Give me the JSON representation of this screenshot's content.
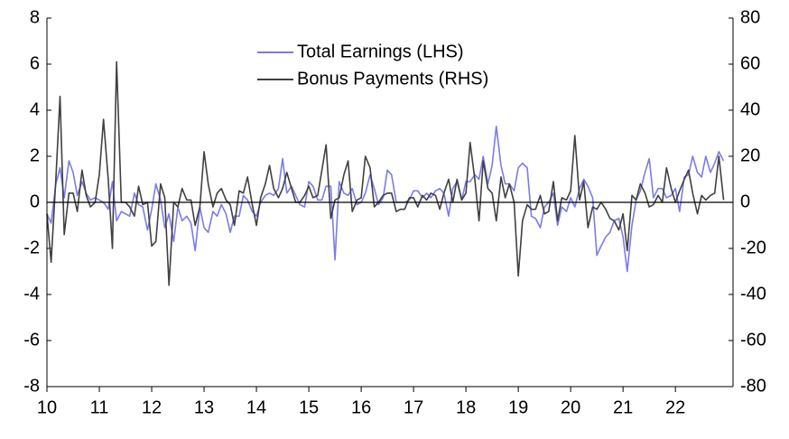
{
  "chart_data": {
    "type": "line",
    "x": [
      10,
      10.08,
      10.17,
      10.25,
      10.33,
      10.42,
      10.5,
      10.58,
      10.67,
      10.75,
      10.83,
      10.92,
      11,
      11.08,
      11.17,
      11.25,
      11.33,
      11.42,
      11.5,
      11.58,
      11.67,
      11.75,
      11.83,
      11.92,
      12,
      12.08,
      12.17,
      12.25,
      12.33,
      12.42,
      12.5,
      12.58,
      12.67,
      12.75,
      12.83,
      12.92,
      13,
      13.08,
      13.17,
      13.25,
      13.33,
      13.42,
      13.5,
      13.58,
      13.67,
      13.75,
      13.83,
      13.92,
      14,
      14.08,
      14.17,
      14.25,
      14.33,
      14.42,
      14.5,
      14.58,
      14.67,
      14.75,
      14.83,
      14.92,
      15,
      15.08,
      15.17,
      15.25,
      15.33,
      15.42,
      15.5,
      15.58,
      15.67,
      15.75,
      15.83,
      15.92,
      16,
      16.08,
      16.17,
      16.25,
      16.33,
      16.42,
      16.5,
      16.58,
      16.67,
      16.75,
      16.83,
      16.92,
      17,
      17.08,
      17.17,
      17.25,
      17.33,
      17.42,
      17.5,
      17.58,
      17.67,
      17.75,
      17.83,
      17.92,
      18,
      18.08,
      18.17,
      18.25,
      18.33,
      18.42,
      18.5,
      18.58,
      18.67,
      18.75,
      18.83,
      18.92,
      19,
      19.08,
      19.17,
      19.25,
      19.33,
      19.42,
      19.5,
      19.58,
      19.67,
      19.75,
      19.83,
      19.92,
      20,
      20.08,
      20.17,
      20.25,
      20.33,
      20.42,
      20.5,
      20.58,
      20.67,
      20.75,
      20.83,
      20.92,
      21,
      21.08,
      21.17,
      21.25,
      21.33,
      21.42,
      21.5,
      21.58,
      21.67,
      21.75,
      21.83,
      21.92,
      22,
      22.08,
      22.17,
      22.25,
      22.33,
      22.42,
      22.5,
      22.58,
      22.67,
      22.75,
      22.83,
      22.92
    ],
    "series": [
      {
        "name": "Total Earnings (LHS)",
        "color": "#7b7bea",
        "axis": "y",
        "values": [
          -0.5,
          -0.9,
          0.8,
          1.5,
          0.2,
          1.8,
          1.3,
          0.3,
          0.9,
          0.4,
          0.1,
          0.2,
          0.1,
          0.0,
          -0.3,
          0.9,
          -0.8,
          -0.4,
          -0.5,
          -0.6,
          0.4,
          -0.1,
          -0.2,
          -1.2,
          -0.3,
          0.8,
          0.1,
          -1.1,
          -0.5,
          -1.7,
          -0.2,
          -0.8,
          -0.6,
          -0.9,
          -2.1,
          -0.2,
          -1.1,
          -1.3,
          -0.4,
          -0.6,
          -0.1,
          -0.5,
          -1.3,
          -0.6,
          -0.6,
          0.3,
          0.1,
          -0.4,
          -0.6,
          0.0,
          0.3,
          0.4,
          0.3,
          0.6,
          1.9,
          0.4,
          0.7,
          0.3,
          -0.1,
          -0.2,
          0.9,
          0.7,
          0.1,
          0.1,
          0.7,
          0.7,
          -2.5,
          0.9,
          0.4,
          0.3,
          0.6,
          -0.1,
          0.0,
          0.4,
          1.2,
          0.6,
          -0.1,
          0.2,
          1.4,
          1.2,
          0.0,
          0.0,
          0.0,
          0.1,
          0.5,
          0.5,
          0.2,
          0.4,
          0.2,
          0.5,
          0.6,
          0.4,
          -0.6,
          0.6,
          0.9,
          0.1,
          0.9,
          0.9,
          1.2,
          1.0,
          2.0,
          0.8,
          1.6,
          3.3,
          1.6,
          0.8,
          0.8,
          0.5,
          1.5,
          1.7,
          1.5,
          -0.6,
          -0.7,
          -1.1,
          -0.2,
          0.0,
          0.4,
          -1.0,
          -0.2,
          -0.4,
          0.2,
          -0.2,
          0.6,
          1.0,
          0.7,
          0.2,
          -2.3,
          -1.9,
          -1.5,
          -1.3,
          -0.8,
          -0.7,
          -1.5,
          -3.0,
          -1.0,
          0.1,
          0.5,
          1.3,
          1.9,
          0.2,
          0.6,
          0.6,
          0.2,
          0.3,
          0.6,
          -0.4,
          1.1,
          1.2,
          2.0,
          1.3,
          1.1,
          2.0,
          1.3,
          1.7,
          2.2,
          1.8
        ]
      },
      {
        "name": "Bonus Payments (RHS)",
        "color": "#404040",
        "axis": "y2",
        "values": [
          -5,
          -26,
          10,
          46,
          -14,
          4,
          4,
          -4,
          14,
          3,
          -2,
          0,
          12,
          36,
          10,
          -20,
          61,
          0,
          0,
          -2,
          -6,
          7,
          -1,
          0,
          -19,
          -17,
          8,
          2,
          -36,
          0,
          -2,
          6,
          1,
          1,
          -10,
          -2,
          22,
          8,
          -2,
          4,
          6,
          1,
          -1,
          -10,
          5,
          4,
          11,
          -1,
          -10,
          2,
          8,
          16,
          6,
          2,
          6,
          13,
          6,
          0,
          0,
          3,
          7,
          2,
          3,
          14,
          25,
          -7,
          1,
          2,
          12,
          18,
          -4,
          1,
          2,
          20,
          15,
          -2,
          0,
          3,
          4,
          4,
          -4,
          -3,
          -3,
          2,
          2,
          -2,
          3,
          1,
          4,
          3,
          -3,
          4,
          10,
          0,
          10,
          1,
          4,
          26,
          10,
          -8,
          18,
          6,
          4,
          -8,
          11,
          2,
          8,
          0,
          -32,
          -8,
          -1,
          -3,
          -3,
          3,
          -5,
          -4,
          9,
          -8,
          2,
          1,
          5,
          29,
          1,
          9,
          -11,
          -2,
          -3,
          0,
          -3,
          -7,
          -8,
          -12,
          -5,
          -21,
          3,
          1,
          8,
          4,
          -2,
          -1,
          3,
          0,
          15,
          6,
          0,
          5,
          10,
          14,
          4,
          -5,
          3,
          1,
          3,
          4,
          20,
          1
        ]
      }
    ],
    "xlim": [
      10,
      23.1
    ],
    "xticks": [
      10,
      11,
      12,
      13,
      14,
      15,
      16,
      17,
      18,
      19,
      20,
      21,
      22
    ],
    "ylim": [
      -8,
      8
    ],
    "yticks": [
      -8,
      -6,
      -4,
      -2,
      0,
      2,
      4,
      6,
      8
    ],
    "y2lim": [
      -80,
      80
    ],
    "y2ticks": [
      -80,
      -60,
      -40,
      -20,
      0,
      20,
      40,
      60,
      80
    ],
    "grid": false,
    "legend": "upper center"
  }
}
